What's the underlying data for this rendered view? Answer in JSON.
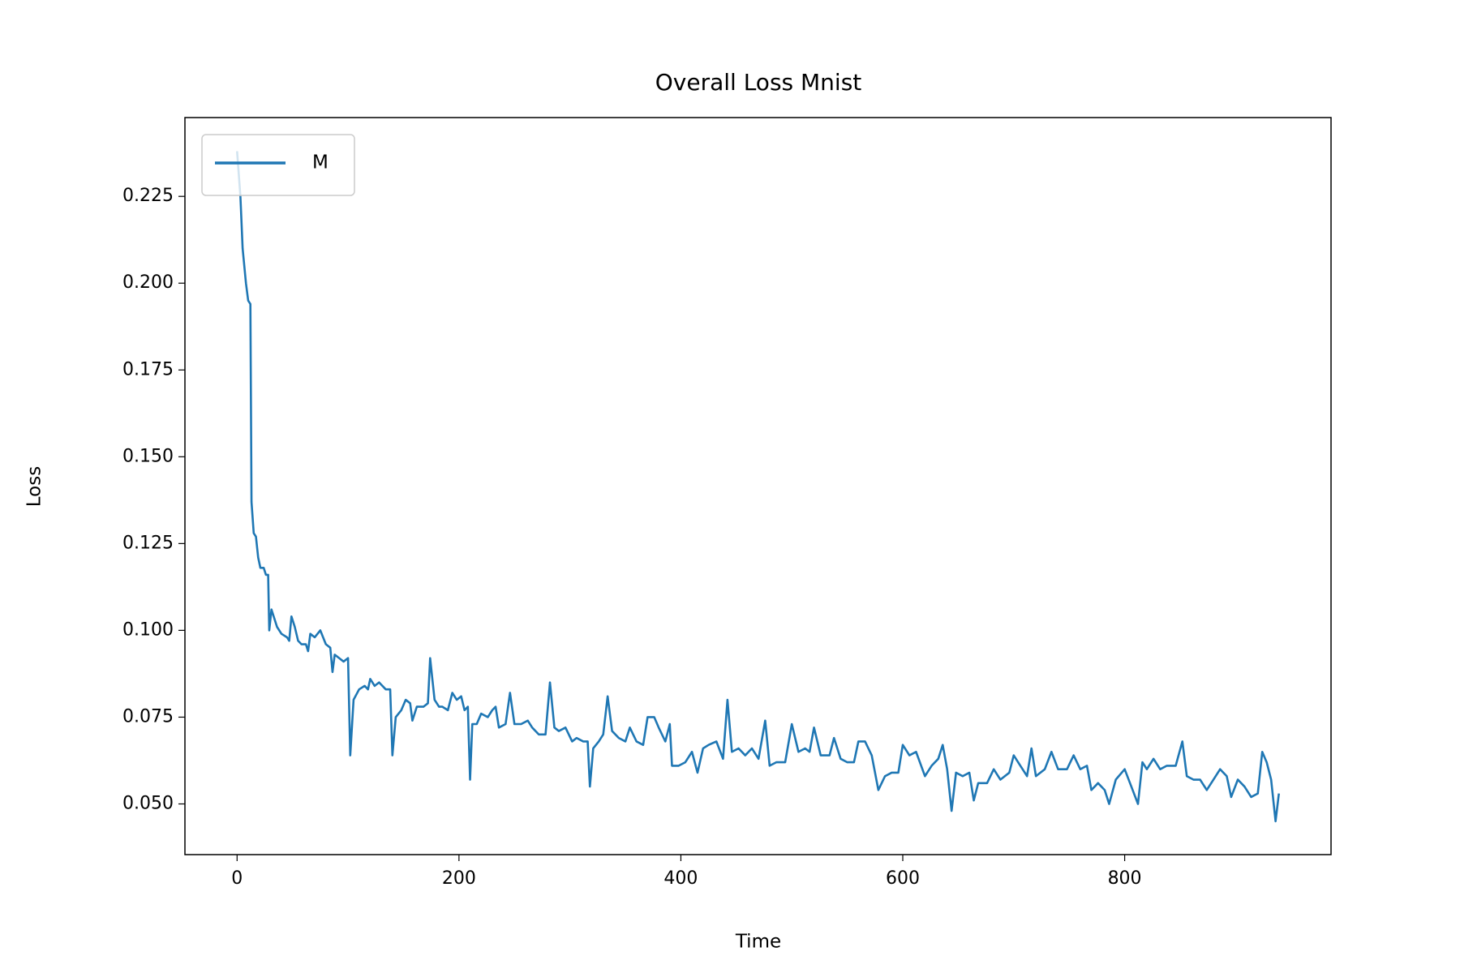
{
  "chart_data": {
    "type": "line",
    "title": "Overall Loss Mnist",
    "x_label": "Time",
    "y_label": "Loss",
    "legend": "upper left",
    "grid": false,
    "xlim": [
      -47,
      986
    ],
    "ylim": [
      0.0354,
      0.2477
    ],
    "xticks": [
      0,
      200,
      400,
      600,
      800
    ],
    "yticks": [
      {
        "value": 0.05,
        "label": "0.050"
      },
      0.075,
      {
        "value": 0.1,
        "label": "0.100"
      },
      0.125,
      {
        "value": 0.15,
        "label": "0.150"
      },
      0.175,
      {
        "value": 0.2,
        "label": "0.200"
      },
      0.225
    ],
    "x": [
      0,
      3,
      5,
      8,
      10,
      12,
      13,
      15,
      17,
      19,
      21,
      24,
      26,
      28,
      29,
      31,
      33,
      36,
      40,
      45,
      47,
      49,
      52,
      55,
      58,
      62,
      64,
      66,
      70,
      75,
      80,
      84,
      86,
      88,
      92,
      96,
      100,
      102,
      105,
      110,
      115,
      118,
      120,
      124,
      128,
      134,
      138,
      140,
      143,
      148,
      152,
      156,
      158,
      162,
      168,
      172,
      174,
      176,
      178,
      182,
      185,
      190,
      194,
      198,
      202,
      205,
      208,
      210,
      212,
      216,
      220,
      226,
      230,
      233,
      236,
      242,
      246,
      250,
      256,
      262,
      266,
      272,
      278,
      282,
      286,
      290,
      296,
      302,
      306,
      312,
      316,
      318,
      321,
      326,
      330,
      334,
      338,
      344,
      350,
      354,
      360,
      366,
      370,
      376,
      380,
      386,
      390,
      392,
      398,
      404,
      410,
      415,
      420,
      425,
      432,
      438,
      442,
      446,
      452,
      458,
      464,
      470,
      476,
      480,
      486,
      494,
      500,
      506,
      512,
      516,
      520,
      526,
      534,
      538,
      544,
      550,
      556,
      560,
      566,
      572,
      578,
      584,
      590,
      596,
      600,
      606,
      612,
      620,
      626,
      632,
      636,
      640,
      644,
      648,
      654,
      660,
      664,
      668,
      676,
      682,
      688,
      696,
      700,
      706,
      712,
      716,
      720,
      728,
      734,
      740,
      748,
      754,
      760,
      766,
      770,
      776,
      782,
      786,
      792,
      800,
      806,
      812,
      816,
      820,
      826,
      832,
      838,
      846,
      852,
      856,
      862,
      868,
      874,
      880,
      886,
      892,
      896,
      902,
      908,
      914,
      920,
      924,
      928,
      932,
      936,
      939
    ],
    "series": [
      {
        "name": "M",
        "color": "#1f77b4",
        "values": [
          0.238,
          0.225,
          0.21,
          0.2,
          0.195,
          0.194,
          0.137,
          0.128,
          0.127,
          0.121,
          0.118,
          0.118,
          0.116,
          0.116,
          0.1,
          0.106,
          0.104,
          0.101,
          0.099,
          0.098,
          0.097,
          0.104,
          0.101,
          0.097,
          0.096,
          0.096,
          0.094,
          0.099,
          0.098,
          0.1,
          0.096,
          0.095,
          0.088,
          0.093,
          0.092,
          0.091,
          0.092,
          0.064,
          0.08,
          0.083,
          0.084,
          0.083,
          0.086,
          0.084,
          0.085,
          0.083,
          0.083,
          0.064,
          0.075,
          0.077,
          0.08,
          0.079,
          0.074,
          0.078,
          0.078,
          0.079,
          0.092,
          0.086,
          0.08,
          0.078,
          0.078,
          0.077,
          0.082,
          0.08,
          0.081,
          0.077,
          0.078,
          0.057,
          0.073,
          0.073,
          0.076,
          0.075,
          0.077,
          0.078,
          0.072,
          0.073,
          0.082,
          0.073,
          0.073,
          0.074,
          0.072,
          0.07,
          0.07,
          0.085,
          0.072,
          0.071,
          0.072,
          0.068,
          0.069,
          0.068,
          0.068,
          0.055,
          0.066,
          0.068,
          0.07,
          0.081,
          0.071,
          0.069,
          0.068,
          0.072,
          0.068,
          0.067,
          0.075,
          0.075,
          0.072,
          0.068,
          0.073,
          0.061,
          0.061,
          0.062,
          0.065,
          0.059,
          0.066,
          0.067,
          0.068,
          0.063,
          0.08,
          0.065,
          0.066,
          0.064,
          0.066,
          0.063,
          0.074,
          0.061,
          0.062,
          0.062,
          0.073,
          0.065,
          0.066,
          0.065,
          0.072,
          0.064,
          0.064,
          0.069,
          0.063,
          0.062,
          0.062,
          0.068,
          0.068,
          0.064,
          0.054,
          0.058,
          0.059,
          0.059,
          0.067,
          0.064,
          0.065,
          0.058,
          0.061,
          0.063,
          0.067,
          0.06,
          0.048,
          0.059,
          0.058,
          0.059,
          0.051,
          0.056,
          0.056,
          0.06,
          0.057,
          0.059,
          0.064,
          0.061,
          0.058,
          0.066,
          0.058,
          0.06,
          0.065,
          0.06,
          0.06,
          0.064,
          0.06,
          0.061,
          0.054,
          0.056,
          0.054,
          0.05,
          0.057,
          0.06,
          0.055,
          0.05,
          0.062,
          0.06,
          0.063,
          0.06,
          0.061,
          0.061,
          0.068,
          0.058,
          0.057,
          0.057,
          0.054,
          0.057,
          0.06,
          0.058,
          0.052,
          0.057,
          0.055,
          0.052,
          0.053,
          0.065,
          0.062,
          0.057,
          0.045,
          0.053
        ]
      }
    ]
  }
}
